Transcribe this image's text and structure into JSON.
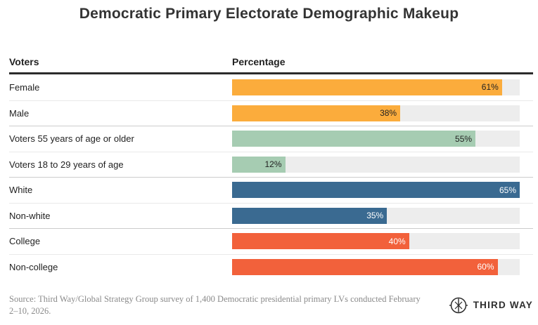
{
  "chart_data": {
    "type": "bar",
    "orientation": "horizontal",
    "title": "Democratic Primary Electorate Demographic Makeup",
    "column_headers": [
      "Voters",
      "Percentage"
    ],
    "categories": [
      "Female",
      "Male",
      "Voters 55 years of age or older",
      "Voters 18 to 29 years of age",
      "White",
      "Non-white",
      "College",
      "Non-college"
    ],
    "values": [
      61,
      38,
      55,
      12,
      65,
      35,
      40,
      60
    ],
    "value_labels": [
      "61%",
      "38%",
      "55%",
      "12%",
      "65%",
      "35%",
      "40%",
      "60%"
    ],
    "unit": "%",
    "xlim": [
      0,
      65
    ],
    "bar_scale_max": 65,
    "groups": [
      "gender",
      "gender",
      "age",
      "age",
      "race",
      "race",
      "education",
      "education"
    ],
    "bar_colors": [
      "#FBAC3C",
      "#FBAC3C",
      "#A6CCB2",
      "#A6CCB2",
      "#3A6A91",
      "#3A6A91",
      "#F2613B",
      "#F2613B"
    ],
    "value_label_colors": [
      "#222222",
      "#222222",
      "#222222",
      "#222222",
      "#FFFFFF",
      "#FFFFFF",
      "#FFFFFF",
      "#FFFFFF"
    ],
    "track_color": "#EDEDED",
    "grid": false,
    "legend": false
  },
  "footer": {
    "source_line1": "Source: Third Way/Global Strategy Group survey of 1,400 Democratic presidential primary LVs conducted February",
    "source_line2": "2–10, 2026.",
    "logo_text": "THIRD WAY"
  }
}
